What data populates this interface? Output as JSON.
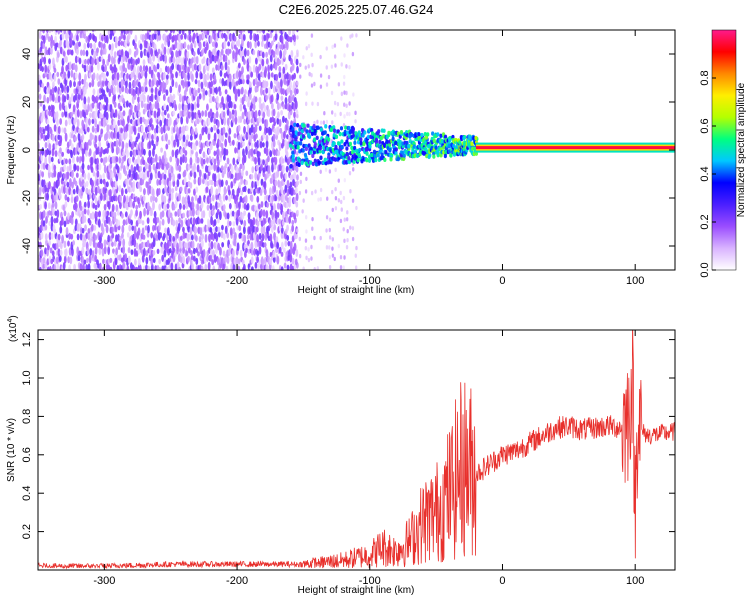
{
  "title": "C2E6.2025.225.07.46.G24",
  "chart_data": [
    {
      "type": "heatmap",
      "title": "C2E6.2025.225.07.46.G24",
      "xlabel": "Height of straight line (km)",
      "ylabel": "Frequency (Hz)",
      "xlim": [
        -350,
        130
      ],
      "ylim": [
        -50,
        50
      ],
      "xticks": [
        -300,
        -200,
        -100,
        0,
        100
      ],
      "xtick_labels": [
        "-300",
        "-200",
        "-100",
        "0",
        "100"
      ],
      "yticks": [
        -40,
        -20,
        0,
        20,
        40
      ],
      "ytick_labels": [
        "-40",
        "-20",
        "0",
        "20",
        "40"
      ],
      "colorbar": {
        "label": "Normalized spectral amplitude",
        "range": [
          0.0,
          1.0
        ],
        "ticks": [
          0.0,
          0.2,
          0.4,
          0.6,
          0.8
        ],
        "tick_labels": [
          "0.0",
          "0.2",
          "0.4",
          "0.6",
          "0.8"
        ],
        "colormap": [
          "#ffffff",
          "#d9b3ff",
          "#9a4dff",
          "#4b1fff",
          "#0000ff",
          "#00c8ff",
          "#00ff80",
          "#b4ff00",
          "#ffee00",
          "#ff8800",
          "#ff0000",
          "#ff1a8c"
        ]
      },
      "regions": [
        {
          "x": [
            -350,
            -155
          ],
          "freq_spread": [
            -50,
            50
          ],
          "amplitude": 0.15,
          "character": "broadband noise"
        },
        {
          "x": [
            -155,
            -110
          ],
          "freq_spread": [
            -50,
            50
          ],
          "amplitude": 0.1,
          "character": "sparse noise"
        },
        {
          "x": [
            -160,
            -20
          ],
          "freq_spread": [
            -15,
            15
          ],
          "amplitude": 0.35,
          "character": "converging tone"
        },
        {
          "x": [
            -20,
            130
          ],
          "freq_center": 1,
          "amplitude": 0.95,
          "character": "narrow tone"
        }
      ],
      "grid": false
    },
    {
      "type": "line",
      "xlabel": "Height of straight line (km)",
      "ylabel": "SNR (10 * v/v)",
      "y_multiplier_label": "(x10",
      "y_multiplier_exponent": "4",
      "y_multiplier_close": ")",
      "xlim": [
        -350,
        130
      ],
      "ylim": [
        0,
        1.25
      ],
      "xticks": [
        -300,
        -200,
        -100,
        0,
        100
      ],
      "xtick_labels": [
        "-300",
        "-200",
        "-100",
        "0",
        "100"
      ],
      "yticks": [
        0.2,
        0.4,
        0.6,
        0.8,
        1.0,
        1.2
      ],
      "ytick_labels": [
        "0.2",
        "0.4",
        "0.6",
        "0.8",
        "1.0",
        "1.2"
      ],
      "color": "#e8302c",
      "series": [
        {
          "x": [
            -350,
            -300,
            -250,
            -200,
            -150,
            -120,
            -100,
            -90,
            -80,
            -70,
            -60,
            -50,
            -40,
            -30,
            -20,
            -10,
            0,
            10,
            20,
            30,
            40,
            50,
            60,
            70,
            80,
            90,
            95,
            98,
            100,
            102,
            105,
            110,
            120,
            130
          ],
          "values": [
            0.02,
            0.02,
            0.03,
            0.03,
            0.03,
            0.05,
            0.08,
            0.12,
            0.1,
            0.15,
            0.25,
            0.3,
            0.4,
            0.55,
            0.5,
            0.55,
            0.6,
            0.62,
            0.66,
            0.7,
            0.74,
            0.75,
            0.73,
            0.74,
            0.75,
            0.74,
            0.8,
            1.0,
            0.3,
            0.85,
            0.72,
            0.7,
            0.71,
            0.72
          ]
        }
      ],
      "grid": false
    }
  ]
}
